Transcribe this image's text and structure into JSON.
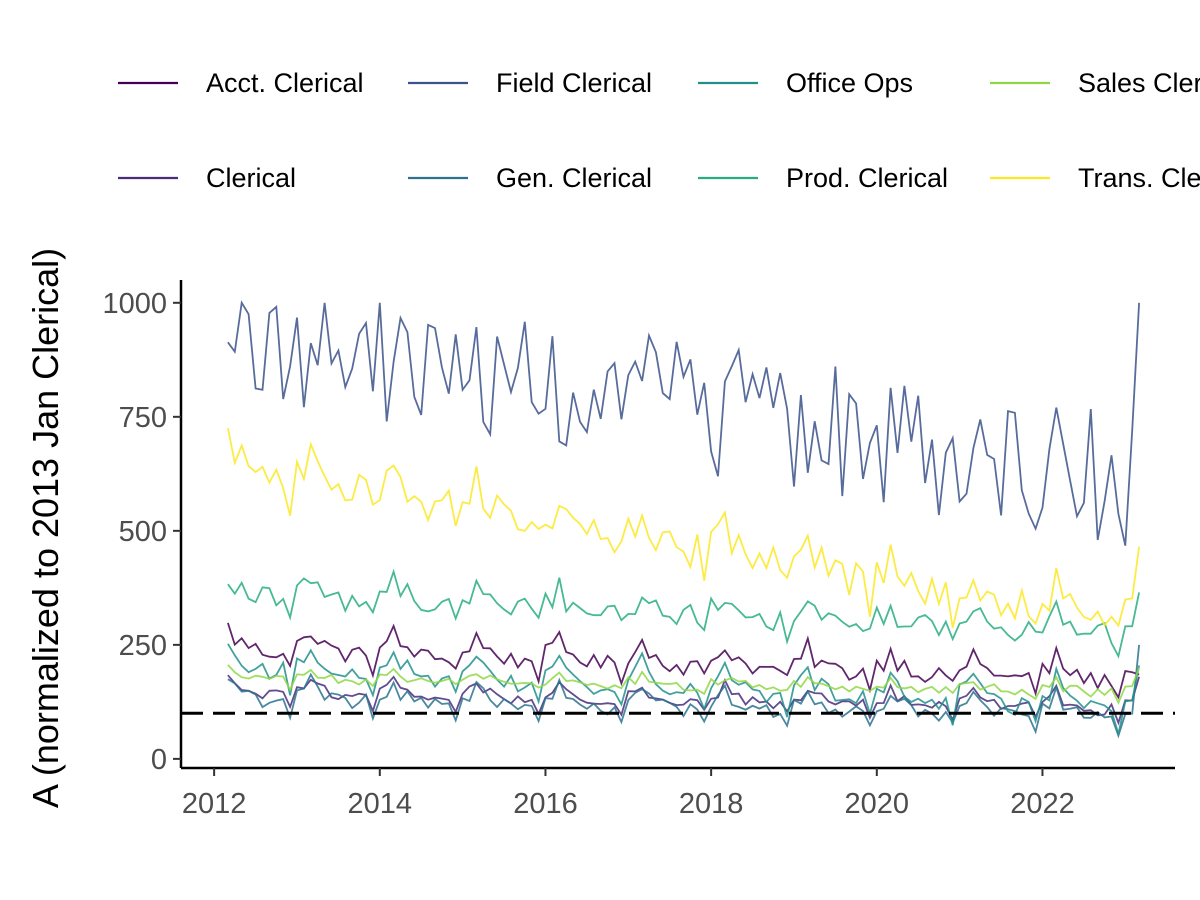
{
  "chart_data": {
    "type": "line",
    "title": "",
    "xlabel": "",
    "ylabel": "A (normalized to 2013 Jan Clerical)",
    "xlim": [
      2011.6,
      2023.6
    ],
    "ylim": [
      -20,
      1050
    ],
    "x_ticks": [
      2012,
      2014,
      2016,
      2018,
      2020,
      2022
    ],
    "y_ticks": [
      0,
      250,
      500,
      750,
      1000
    ],
    "grid": false,
    "legend_position": "top",
    "reference_line": {
      "y": 100,
      "style": "dashed",
      "color": "#000000"
    },
    "x_start": "2012-03",
    "x_end": "2023-03",
    "frequency": "monthly",
    "series": [
      {
        "name": "Acct. Clerical",
        "color": "#440154",
        "base": 250,
        "trend": -70,
        "amp": 45,
        "noise": 18,
        "end": 185
      },
      {
        "name": "Clerical",
        "color": "#472D7B",
        "base": 150,
        "trend": -35,
        "amp": 35,
        "noise": 12,
        "end": 180
      },
      {
        "name": "Field Clerical",
        "color": "#3B528B",
        "base": 930,
        "trend": -320,
        "amp": 0,
        "noise": 150,
        "end": 1000
      },
      {
        "name": "Gen. Clerical",
        "color": "#2C728E",
        "base": 140,
        "trend": -40,
        "amp": 45,
        "noise": 15,
        "end": 250
      },
      {
        "name": "Office Ops",
        "color": "#21908C",
        "base": 210,
        "trend": -90,
        "amp": 60,
        "noise": 18,
        "end": 205
      },
      {
        "name": "Prod. Clerical",
        "color": "#27AD81",
        "base": 370,
        "trend": -90,
        "amp": 40,
        "noise": 25,
        "end": 365
      },
      {
        "name": "Sales Clerical",
        "color": "#8FD744",
        "base": 180,
        "trend": -30,
        "amp": 20,
        "noise": 10,
        "end": 200
      },
      {
        "name": "Trans. Clerical",
        "color": "#FDE725",
        "base": 650,
        "trend": -350,
        "amp": 60,
        "noise": 40,
        "end": 465
      }
    ]
  }
}
